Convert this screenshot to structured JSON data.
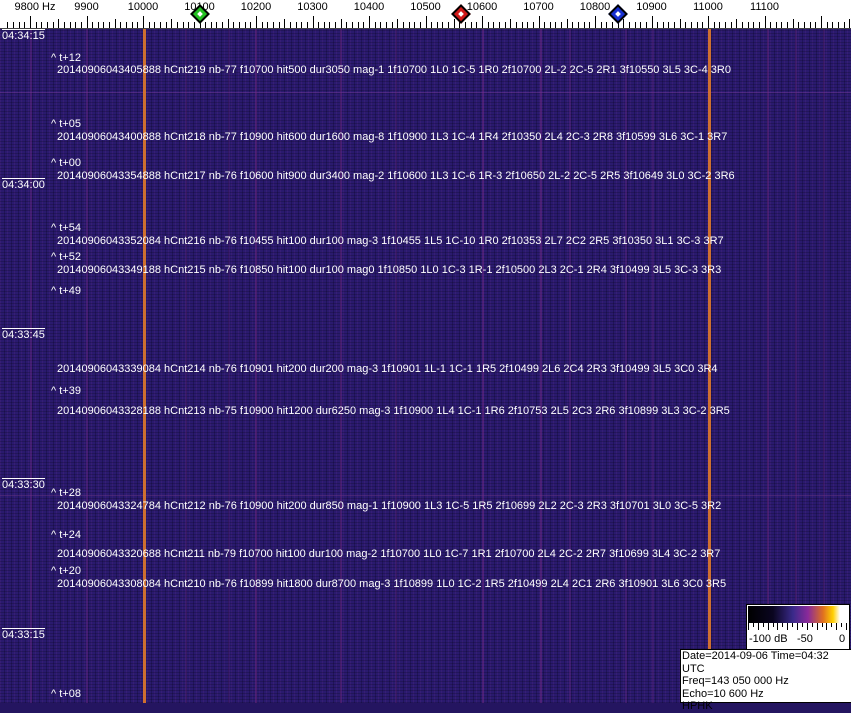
{
  "axis": {
    "unit_label": "9800 Hz",
    "freq_labels": [
      "9900",
      "10000",
      "10100",
      "10200",
      "10300",
      "10400",
      "10500",
      "10600",
      "10700",
      "10800",
      "10900",
      "11000",
      "11100"
    ],
    "freq_label_values": [
      9900,
      10000,
      10100,
      10200,
      10300,
      10400,
      10500,
      10600,
      10700,
      10800,
      10900,
      11000,
      11100
    ],
    "range_hz": [
      9780,
      11280
    ],
    "markers": [
      {
        "name": "green",
        "freq_hz": 10100,
        "color": "#22c020"
      },
      {
        "name": "red",
        "freq_hz": 10563,
        "color": "#d01818"
      },
      {
        "name": "blue",
        "freq_hz": 10840,
        "color": "#1830d0"
      }
    ]
  },
  "time_labels": [
    "04:34:15",
    "04:34:00",
    "04:33:45",
    "04:33:30",
    "04:33:15"
  ],
  "offset_labels": [
    "^ t+12",
    "^ t+05",
    "^ t+00",
    "^ t+54",
    "^ t+52",
    "^ t+49",
    "^ t+39",
    "^ t+28",
    "^ t+24",
    "^ t+20",
    "^ t+08"
  ],
  "detections": [
    "20140906043405888 hCnt219 nb-77 f10700 hit500 dur3050 mag-1 1f10700 1L0 1C-5 1R0 2f10700 2L-2 2C-5 2R1 3f10550 3L5 3C-4 3R0",
    "20140906043400888 hCnt218 nb-77 f10900 hit600 dur1600 mag-8 1f10900 1L3 1C-4 1R4 2f10350 2L4 2C-3 2R8 3f10599 3L6 3C-1 3R7",
    "20140906043354888 hCnt217 nb-76 f10600 hit900 dur3400 mag-2 1f10600 1L3 1C-6 1R-3 2f10650 2L-2 2C-5 2R5 3f10649 3L0 3C-2 3R6",
    "20140906043352084 hCnt216 nb-76 f10455 hit100 dur100 mag-3 1f10455 1L5 1C-10 1R0 2f10353 2L7 2C2 2R5 3f10350 3L1 3C-3 3R7",
    "20140906043349188 hCnt215 nb-76 f10850 hit100 dur100 mag0 1f10850 1L0 1C-3 1R-1 2f10500 2L3 2C-1 2R4 3f10499 3L5 3C-3 3R3",
    "20140906043339084 hCnt214 nb-76 f10901 hit200 dur200 mag-3 1f10901 1L-1 1C-1 1R5 2f10499 2L6 2C4 2R3 3f10499 3L5 3C0 3R4",
    "20140906043328188 hCnt213 nb-75 f10900 hit1200 dur6250 mag-3 1f10900 1L4 1C-1 1R6 2f10753 2L5 2C3 2R6 3f10899 3L3 3C-2 3R5",
    "20140906043324784 hCnt212 nb-76 f10900 hit200 dur850 mag-1 1f10900 1L3 1C-5 1R5 2f10699 2L2 2C-3 2R3 3f10701 3L0 3C-5 3R2",
    "20140906043320688 hCnt211 nb-79 f10700 hit100 dur100 mag-2 1f10700 1L0 1C-7 1R1 2f10700 2L4 2C-2 2R7 3f10699 3L4 3C-2 3R7",
    "20140906043308084 hCnt210 nb-76 f10899 hit1800 dur8700 mag-3 1f10899 1L0 1C-2 1R5 2f10499 2L4 2C1 2R6 3f10901 3L6 3C0 3R5"
  ],
  "colorbar": {
    "labels": [
      "-100 dB",
      "-50",
      "0"
    ],
    "range_db": [
      -100,
      0
    ]
  },
  "info": {
    "date_time": "Date=2014-09-06 Time=04:32 UTC",
    "freq": "Freq=143 050 000 Hz",
    "echo": "Echo=10 600 Hz",
    "station": "HPHK"
  },
  "colors": {
    "background": "#2a1a6e",
    "carrier": "#e07a2a",
    "trace": "#7a2a8a"
  }
}
